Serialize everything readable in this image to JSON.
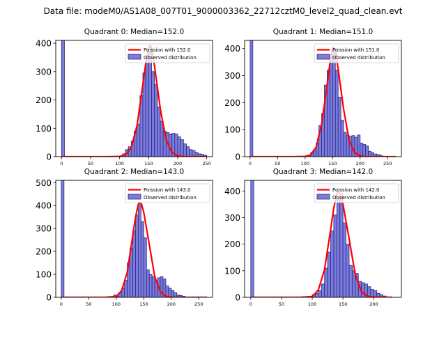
{
  "figure_title": "Data file: modeM0/AS1A08_007T01_9000003362_22712cztM0_level2_quad_clean.evt",
  "colors": {
    "bar_fill": "#7b7bdf",
    "bar_edge": "#2a2a7a",
    "curve": "#ff0000"
  },
  "chart_data": [
    {
      "type": "bar",
      "title": "Quadrant 0: Median=152.0",
      "xlim": [
        -10,
        260
      ],
      "ylim": [
        0,
        410
      ],
      "xticks": [
        0,
        50,
        100,
        150,
        200,
        250
      ],
      "yticks": [
        0,
        100,
        200,
        300,
        400
      ],
      "legend_position": "top-right",
      "legend": {
        "curve": "Poission with 152.0",
        "bars": "Observed distribution"
      },
      "bin_width": 5,
      "spike": {
        "x": 0,
        "value": 410
      },
      "bins_start": [
        105,
        110,
        115,
        120,
        125,
        130,
        135,
        140,
        145,
        150,
        155,
        160,
        165,
        170,
        175,
        180,
        185,
        190,
        195,
        200,
        205,
        210,
        215,
        220,
        225,
        230,
        235,
        240,
        245
      ],
      "values": [
        10,
        25,
        35,
        55,
        90,
        115,
        215,
        295,
        350,
        370,
        300,
        255,
        175,
        125,
        90,
        85,
        80,
        82,
        80,
        70,
        60,
        45,
        35,
        25,
        22,
        15,
        10,
        8,
        5
      ],
      "curve": {
        "mean": 152,
        "points": [
          [
            0,
            0
          ],
          [
            80,
            0
          ],
          [
            100,
            1
          ],
          [
            110,
            6
          ],
          [
            120,
            32
          ],
          [
            130,
            110
          ],
          [
            140,
            255
          ],
          [
            145,
            330
          ],
          [
            150,
            385
          ],
          [
            152,
            393
          ],
          [
            155,
            385
          ],
          [
            160,
            320
          ],
          [
            170,
            170
          ],
          [
            180,
            60
          ],
          [
            190,
            15
          ],
          [
            200,
            3
          ],
          [
            210,
            0
          ],
          [
            250,
            0
          ]
        ]
      }
    },
    {
      "type": "bar",
      "title": "Quadrant 1: Median=151.0",
      "xlim": [
        -10,
        275
      ],
      "ylim": [
        0,
        430
      ],
      "xticks": [
        0,
        50,
        100,
        150,
        200,
        250
      ],
      "yticks": [
        0,
        100,
        200,
        300,
        400
      ],
      "legend_position": "top-right",
      "legend": {
        "curve": "Poission with 151.0",
        "bars": "Observed distribution"
      },
      "bin_width": 5,
      "spike": {
        "x": 0,
        "value": 430
      },
      "bins_start": [
        105,
        110,
        115,
        120,
        125,
        130,
        135,
        140,
        145,
        150,
        155,
        160,
        165,
        170,
        175,
        180,
        185,
        190,
        195,
        200,
        205,
        210,
        215,
        220,
        225,
        230,
        235
      ],
      "values": [
        5,
        15,
        25,
        50,
        115,
        160,
        265,
        320,
        380,
        400,
        320,
        220,
        135,
        90,
        80,
        75,
        78,
        72,
        80,
        50,
        45,
        40,
        20,
        15,
        10,
        8,
        5
      ],
      "curve": {
        "mean": 151,
        "points": [
          [
            0,
            0
          ],
          [
            80,
            0
          ],
          [
            100,
            1
          ],
          [
            110,
            7
          ],
          [
            120,
            35
          ],
          [
            130,
            120
          ],
          [
            140,
            265
          ],
          [
            145,
            345
          ],
          [
            150,
            400
          ],
          [
            151,
            405
          ],
          [
            155,
            395
          ],
          [
            160,
            325
          ],
          [
            170,
            175
          ],
          [
            180,
            60
          ],
          [
            190,
            15
          ],
          [
            200,
            3
          ],
          [
            210,
            0
          ],
          [
            265,
            0
          ]
        ]
      }
    },
    {
      "type": "bar",
      "title": "Quadrant 2: Median=143.0",
      "xlim": [
        -10,
        275
      ],
      "ylim": [
        0,
        510
      ],
      "xticks": [
        0,
        50,
        100,
        150,
        200,
        250
      ],
      "yticks": [
        0,
        100,
        200,
        300,
        400,
        500
      ],
      "legend_position": "top-right",
      "legend": {
        "curve": "Poission with 143.0",
        "bars": "Observed distribution"
      },
      "bin_width": 5,
      "spike": {
        "x": 0,
        "value": 510
      },
      "bins_start": [
        95,
        100,
        105,
        110,
        115,
        120,
        125,
        130,
        135,
        140,
        145,
        150,
        155,
        160,
        165,
        170,
        175,
        180,
        185,
        190,
        195,
        200,
        205,
        210,
        215,
        220
      ],
      "values": [
        10,
        5,
        20,
        40,
        75,
        150,
        215,
        290,
        360,
        415,
        330,
        260,
        120,
        100,
        90,
        70,
        85,
        90,
        80,
        50,
        40,
        30,
        20,
        10,
        8,
        5
      ],
      "curve": {
        "mean": 143,
        "points": [
          [
            0,
            0
          ],
          [
            80,
            0
          ],
          [
            100,
            4
          ],
          [
            110,
            30
          ],
          [
            120,
            110
          ],
          [
            130,
            270
          ],
          [
            135,
            350
          ],
          [
            140,
            405
          ],
          [
            143,
            415
          ],
          [
            146,
            405
          ],
          [
            150,
            370
          ],
          [
            160,
            230
          ],
          [
            170,
            90
          ],
          [
            180,
            25
          ],
          [
            190,
            5
          ],
          [
            200,
            1
          ],
          [
            210,
            0
          ],
          [
            265,
            0
          ]
        ]
      }
    },
    {
      "type": "bar",
      "title": "Quadrant 3: Median=142.0",
      "xlim": [
        -10,
        245
      ],
      "ylim": [
        0,
        440
      ],
      "xticks": [
        0,
        50,
        100,
        150,
        200
      ],
      "yticks": [
        0,
        100,
        200,
        300,
        400
      ],
      "legend_position": "top-right",
      "legend": {
        "curve": "Poission with 142.0",
        "bars": "Observed distribution"
      },
      "bin_width": 5,
      "spike": {
        "x": 0,
        "value": 440
      },
      "bins_start": [
        100,
        105,
        110,
        115,
        120,
        125,
        130,
        135,
        140,
        145,
        150,
        155,
        160,
        165,
        170,
        175,
        180,
        185,
        190,
        195,
        200,
        205,
        210,
        215
      ],
      "values": [
        10,
        15,
        25,
        50,
        110,
        170,
        250,
        310,
        370,
        390,
        280,
        200,
        120,
        100,
        90,
        60,
        55,
        50,
        40,
        30,
        25,
        15,
        10,
        5
      ],
      "curve": {
        "mean": 142,
        "points": [
          [
            0,
            0
          ],
          [
            80,
            0
          ],
          [
            100,
            3
          ],
          [
            110,
            28
          ],
          [
            120,
            105
          ],
          [
            130,
            255
          ],
          [
            135,
            335
          ],
          [
            140,
            390
          ],
          [
            142,
            398
          ],
          [
            145,
            390
          ],
          [
            150,
            350
          ],
          [
            160,
            220
          ],
          [
            170,
            85
          ],
          [
            180,
            22
          ],
          [
            190,
            4
          ],
          [
            200,
            1
          ],
          [
            230,
            0
          ]
        ]
      }
    }
  ]
}
